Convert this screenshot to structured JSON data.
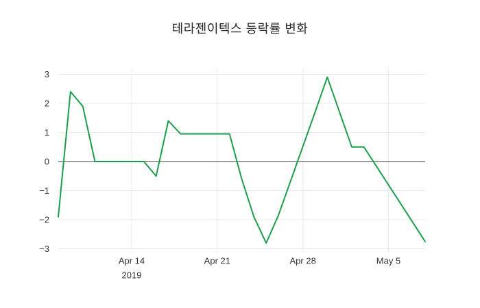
{
  "title": "테라젠이텍스 등락률 변화",
  "colors": {
    "line": "#1b9e4c",
    "grid": "#e8e8e8",
    "zero_line": "#3a3a3a",
    "tick_text": "#333333",
    "title_text": "#262626",
    "background": "#ffffff"
  },
  "chart_data": {
    "type": "line",
    "title": "테라젠이텍스 등락률 변화",
    "legend_position": "none",
    "grid": true,
    "zero_line": true,
    "ylim": [
      -3,
      3
    ],
    "x_range": [
      0,
      30
    ],
    "y_ticks": [
      3,
      2,
      1,
      0,
      -1,
      -2,
      -3
    ],
    "x_ticks": [
      {
        "label": "Apr 14",
        "sublabel": "2019",
        "offset": 6
      },
      {
        "label": "Apr 21",
        "sublabel": "",
        "offset": 13
      },
      {
        "label": "Apr 28",
        "sublabel": "",
        "offset": 20
      },
      {
        "label": "May 5",
        "sublabel": "",
        "offset": 27
      }
    ],
    "x": [
      "Apr 8",
      "Apr 9",
      "Apr 10",
      "Apr 11",
      "Apr 12",
      "Apr 15",
      "Apr 16",
      "Apr 17",
      "Apr 18",
      "Apr 19",
      "Apr 22",
      "Apr 23",
      "Apr 24",
      "Apr 25",
      "Apr 26",
      "Apr 29",
      "Apr 30",
      "May 2",
      "May 3",
      "May 7",
      "May 8"
    ],
    "x_offsets": [
      0,
      1,
      2,
      3,
      4,
      7,
      8,
      9,
      10,
      11,
      14,
      15,
      16,
      17,
      18,
      21,
      22,
      24,
      25,
      29,
      30
    ],
    "series": [
      {
        "name": "등락률",
        "color": "#1b9e4c",
        "values": [
          -1.9,
          2.4,
          1.9,
          0.0,
          0.0,
          0.0,
          -0.5,
          1.4,
          0.95,
          0.95,
          0.95,
          -0.6,
          -1.9,
          -2.8,
          -1.85,
          1.7,
          2.9,
          0.5,
          0.5,
          -2.1,
          -2.75
        ]
      }
    ]
  }
}
